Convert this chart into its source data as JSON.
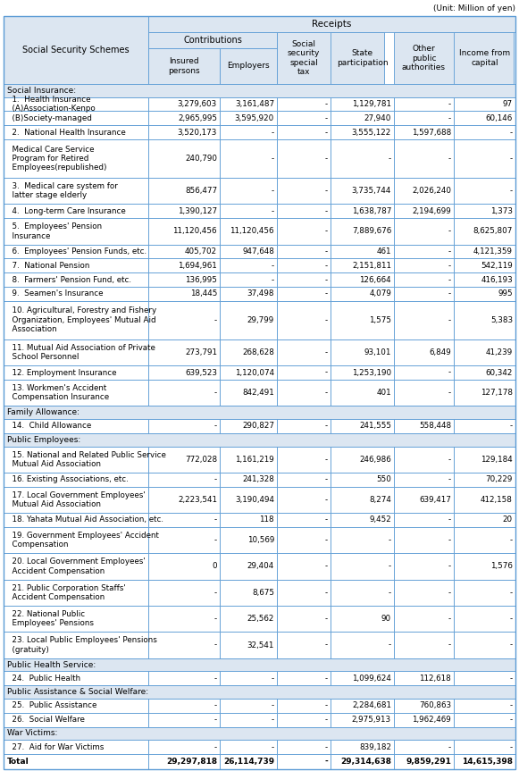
{
  "title_note": "(Unit: Million of yen)",
  "col0_header": "Social Security Schemes",
  "receipts_label": "Receipts",
  "contributions_label": "Contributions",
  "col_headers": [
    "Insured\npersons",
    "Employers",
    "Social\nsecurity\nspecial\ntax",
    "State\nparticipation",
    "Other\npublic\nauthorities",
    "Income from\ncapital"
  ],
  "bg_header": "#dce6f1",
  "bg_white": "#ffffff",
  "border_color": "#5b9bd5",
  "row_entries": [
    {
      "type": "section",
      "label": "Social Insurance:"
    },
    {
      "type": "data",
      "label": "  1.  Health Insurance\n  (A)Association-Kenpo",
      "data": [
        "3,279,603",
        "3,161,487",
        "-",
        "1,129,781",
        "-",
        "97"
      ]
    },
    {
      "type": "data",
      "label": "  (B)Society-managed",
      "data": [
        "2,965,995",
        "3,595,920",
        "-",
        "27,940",
        "-",
        "60,146"
      ]
    },
    {
      "type": "data",
      "label": "  2.  National Health Insurance",
      "data": [
        "3,520,173",
        "-",
        "-",
        "3,555,122",
        "1,597,688",
        "-"
      ]
    },
    {
      "type": "data3",
      "label": "  Medical Care Service\n  Program for Retired\n  Employees(republished)",
      "data": [
        "240,790",
        "-",
        "-",
        "-",
        "-",
        "-"
      ]
    },
    {
      "type": "data2",
      "label": "  3.  Medical care system for\n  latter stage elderly",
      "data": [
        "856,477",
        "-",
        "-",
        "3,735,744",
        "2,026,240",
        "-"
      ]
    },
    {
      "type": "data",
      "label": "  4.  Long-term Care Insurance",
      "data": [
        "1,390,127",
        "-",
        "-",
        "1,638,787",
        "2,194,699",
        "1,373"
      ]
    },
    {
      "type": "data2",
      "label": "  5.  Employees' Pension\n  Insurance",
      "data": [
        "11,120,456",
        "11,120,456",
        "-",
        "7,889,676",
        "-",
        "8,625,807"
      ]
    },
    {
      "type": "data",
      "label": "  6.  Employees' Pension Funds, etc.",
      "data": [
        "405,702",
        "947,648",
        "-",
        "461",
        "-",
        "4,121,359"
      ]
    },
    {
      "type": "data",
      "label": "  7.  National Pension",
      "data": [
        "1,694,961",
        "-",
        "-",
        "2,151,811",
        "-",
        "542,119"
      ]
    },
    {
      "type": "data",
      "label": "  8.  Farmers' Pension Fund, etc.",
      "data": [
        "136,995",
        "-",
        "-",
        "126,664",
        "-",
        "416,193"
      ]
    },
    {
      "type": "data",
      "label": "  9.  Seamen's Insurance",
      "data": [
        "18,445",
        "37,498",
        "-",
        "4,079",
        "-",
        "995"
      ]
    },
    {
      "type": "data3",
      "label": "  10. Agricultural, Forestry and Fishery\n  Organization, Employees' Mutual Aid\n  Association",
      "data": [
        "-",
        "29,799",
        "-",
        "1,575",
        "-",
        "5,383"
      ]
    },
    {
      "type": "data2",
      "label": "  11. Mutual Aid Association of Private\n  School Personnel",
      "data": [
        "273,791",
        "268,628",
        "-",
        "93,101",
        "6,849",
        "41,239"
      ]
    },
    {
      "type": "data",
      "label": "  12. Employment Insurance",
      "data": [
        "639,523",
        "1,120,074",
        "-",
        "1,253,190",
        "-",
        "60,342"
      ]
    },
    {
      "type": "data2",
      "label": "  13. Workmen's Accident\n  Compensation Insurance",
      "data": [
        "-",
        "842,491",
        "-",
        "401",
        "-",
        "127,178"
      ]
    },
    {
      "type": "section",
      "label": "Family Allowance:"
    },
    {
      "type": "data",
      "label": "  14.  Child Allowance",
      "data": [
        "-",
        "290,827",
        "-",
        "241,555",
        "558,448",
        "-"
      ]
    },
    {
      "type": "section",
      "label": "Public Employees:"
    },
    {
      "type": "data2",
      "label": "  15. National and Related Public Service\n  Mutual Aid Association",
      "data": [
        "772,028",
        "1,161,219",
        "-",
        "246,986",
        "-",
        "129,184"
      ]
    },
    {
      "type": "data",
      "label": "  16. Existing Associations, etc.",
      "data": [
        "-",
        "241,328",
        "-",
        "550",
        "-",
        "70,229"
      ]
    },
    {
      "type": "data2",
      "label": "  17. Local Government Employees'\n  Mutual Aid Association",
      "data": [
        "2,223,541",
        "3,190,494",
        "-",
        "8,274",
        "639,417",
        "412,158"
      ]
    },
    {
      "type": "data",
      "label": "  18. Yahata Mutual Aid Association, etc.",
      "data": [
        "-",
        "118",
        "-",
        "9,452",
        "-",
        "20"
      ]
    },
    {
      "type": "data2",
      "label": "  19. Government Employees' Accident\n  Compensation",
      "data": [
        "-",
        "10,569",
        "-",
        "-",
        "-",
        "-"
      ]
    },
    {
      "type": "data2",
      "label": "  20. Local Government Employees'\n  Accident Compensation",
      "data": [
        "0",
        "29,404",
        "-",
        "-",
        "-",
        "1,576"
      ]
    },
    {
      "type": "data2",
      "label": "  21. Public Corporation Staffs'\n  Accident Compensation",
      "data": [
        "-",
        "8,675",
        "-",
        "-",
        "-",
        "-"
      ]
    },
    {
      "type": "data2",
      "label": "  22. National Public\n  Employees' Pensions",
      "data": [
        "-",
        "25,562",
        "-",
        "90",
        "-",
        "-"
      ]
    },
    {
      "type": "data2",
      "label": "  23. Local Public Employees' Pensions\n  (gratuity)",
      "data": [
        "-",
        "32,541",
        "-",
        "-",
        "-",
        "-"
      ]
    },
    {
      "type": "section",
      "label": "Public Health Service:"
    },
    {
      "type": "data",
      "label": "  24.  Public Health",
      "data": [
        "-",
        "-",
        "-",
        "1,099,624",
        "112,618",
        "-"
      ]
    },
    {
      "type": "section",
      "label": "Public Assistance & Social Welfare:"
    },
    {
      "type": "data",
      "label": "  25.  Public Assistance",
      "data": [
        "-",
        "-",
        "-",
        "2,284,681",
        "760,863",
        "-"
      ]
    },
    {
      "type": "data",
      "label": "  26.  Social Welfare",
      "data": [
        "-",
        "-",
        "-",
        "2,975,913",
        "1,962,469",
        "-"
      ]
    },
    {
      "type": "section",
      "label": "War Victims:"
    },
    {
      "type": "data",
      "label": "  27.  Aid for War Victims",
      "data": [
        "-",
        "-",
        "-",
        "839,182",
        "-",
        "-"
      ]
    },
    {
      "type": "total",
      "label": "Total",
      "data": [
        "29,297,818",
        "26,114,739",
        "-",
        "29,314,638",
        "9,859,291",
        "14,615,398"
      ]
    }
  ]
}
